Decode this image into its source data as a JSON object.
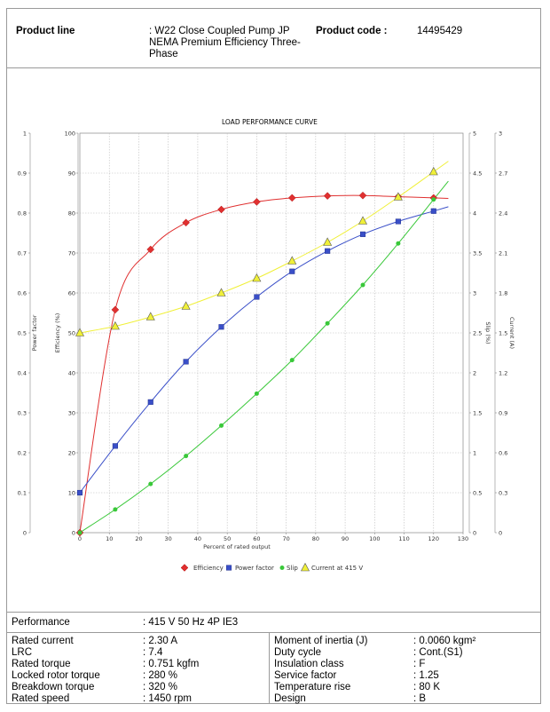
{
  "header": {
    "product_line_label": "Product line",
    "product_line_value": [
      ": W22 Close Coupled Pump JP",
      "NEMA Premium Efficiency Three-",
      "Phase"
    ],
    "product_code_label": "Product code :",
    "product_code_value": "14495429"
  },
  "performance": {
    "label": "Performance",
    "value": ": 415 V 50 Hz 4P IE3"
  },
  "specs_left": [
    {
      "key": "Rated current",
      "value": ": 2.30 A"
    },
    {
      "key": "LRC",
      "value": ": 7.4"
    },
    {
      "key": "Rated torque",
      "value": ": 0.751 kgfm"
    },
    {
      "key": "Locked rotor torque",
      "value": ": 280 %"
    },
    {
      "key": "Breakdown torque",
      "value": ": 320 %"
    },
    {
      "key": "Rated speed",
      "value": ": 1450 rpm"
    }
  ],
  "specs_right": [
    {
      "key": "Moment of inertia (J)",
      "value": ": 0.0060 kgm²"
    },
    {
      "key": "Duty cycle",
      "value": ": Cont.(S1)"
    },
    {
      "key": "Insulation class",
      "value": ": F"
    },
    {
      "key": "Service factor",
      "value": ": 1.25"
    },
    {
      "key": "Temperature rise",
      "value": ": 80 K"
    },
    {
      "key": "Design",
      "value": ": B"
    }
  ],
  "chart_data": {
    "type": "line",
    "title": "LOAD PERFORMANCE CURVE",
    "xlabel": "Percent of rated output",
    "x_ticks": [
      "0",
      "10",
      "20",
      "30",
      "40",
      "50",
      "60",
      "70",
      "80",
      "90",
      "100",
      "110",
      "120",
      "130"
    ],
    "xlim": [
      0,
      130
    ],
    "axes": {
      "power_factor": {
        "label": "Power factor",
        "ticks": [
          "0",
          "0.1",
          "0.2",
          "0.3",
          "0.4",
          "0.5",
          "0.6",
          "0.7",
          "0.8",
          "0.9",
          "1"
        ],
        "range": [
          0,
          1
        ]
      },
      "efficiency": {
        "label": "Efficiency (%)",
        "ticks": [
          "0",
          "10",
          "20",
          "30",
          "40",
          "50",
          "60",
          "70",
          "80",
          "90",
          "100"
        ],
        "range": [
          0,
          100
        ]
      },
      "slip": {
        "label": "Slip (%)",
        "ticks": [
          "0",
          "0.5",
          "1",
          "1.5",
          "2",
          "2.5",
          "3",
          "3.5",
          "4",
          "4.5",
          "5"
        ],
        "range": [
          0,
          5
        ]
      },
      "current": {
        "label": "Current (A)",
        "ticks": [
          "0",
          "0.3",
          "0.6",
          "0.9",
          "1.2",
          "1.5",
          "1.8",
          "2.1",
          "2.4",
          "2.7",
          "3"
        ],
        "range": [
          0,
          3
        ]
      }
    },
    "grid": true,
    "legend_position": "bottom",
    "series": [
      {
        "name": "Efficiency",
        "axis": "efficiency",
        "color": "#e03030",
        "marker": "diamond",
        "x": [
          0,
          12,
          24,
          36,
          48,
          60,
          72,
          84,
          96,
          108,
          120
        ],
        "y": [
          0,
          55.8,
          70.9,
          77.6,
          80.9,
          82.8,
          83.8,
          84.3,
          84.4,
          84.1,
          83.8
        ]
      },
      {
        "name": "Power factor",
        "axis": "power_factor",
        "color": "#3a4fc8",
        "marker": "square",
        "x": [
          0,
          12,
          24,
          36,
          48,
          60,
          72,
          84,
          96,
          108,
          120
        ],
        "y": [
          0.1,
          0.217,
          0.327,
          0.428,
          0.515,
          0.59,
          0.654,
          0.705,
          0.747,
          0.779,
          0.805
        ]
      },
      {
        "name": "Slip",
        "axis": "slip",
        "color": "#39c839",
        "marker": "circle",
        "x": [
          0,
          12,
          24,
          36,
          48,
          60,
          72,
          84,
          96,
          108,
          120
        ],
        "y": [
          0,
          0.29,
          0.61,
          0.96,
          1.34,
          1.74,
          2.16,
          2.62,
          3.1,
          3.62,
          4.17
        ]
      },
      {
        "name": "Current at 415 V",
        "axis": "current",
        "color": "#f0f038",
        "marker": "triangle",
        "x": [
          0,
          12,
          24,
          36,
          48,
          60,
          72,
          84,
          96,
          108,
          120
        ],
        "y": [
          1.5,
          1.55,
          1.62,
          1.7,
          1.8,
          1.91,
          2.04,
          2.18,
          2.34,
          2.52,
          2.71
        ]
      }
    ]
  }
}
